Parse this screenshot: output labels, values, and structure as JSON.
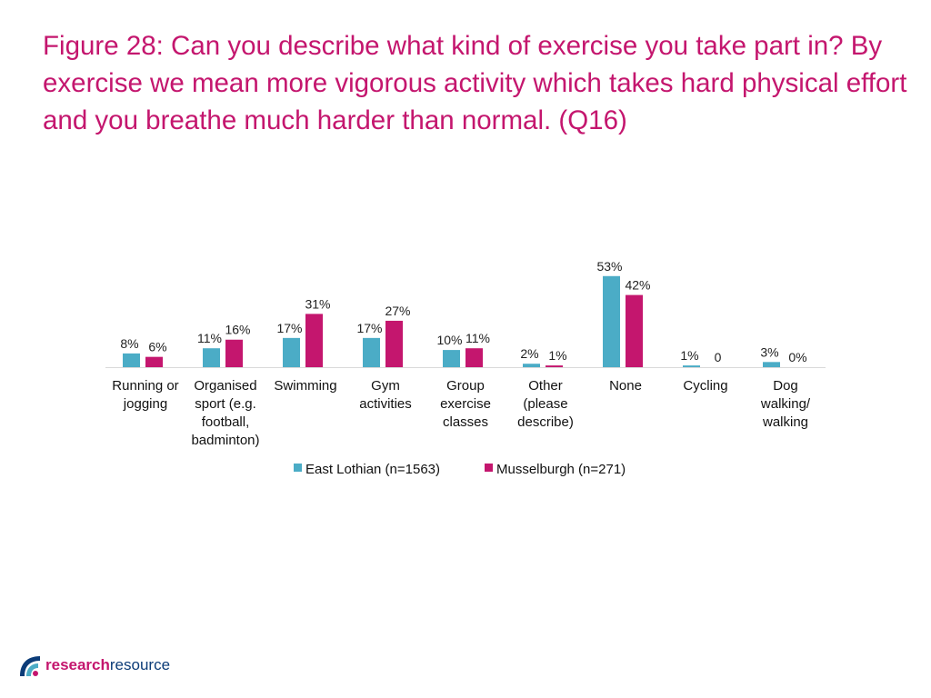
{
  "title": "Figure 28: Can you describe what kind of exercise you take part in? By exercise we mean more vigorous activity which takes hard physical effort and you breathe much harder than normal. (Q16)",
  "logo": {
    "part1": "research",
    "part2": "resource"
  },
  "colors": {
    "series1": "#4bacc6",
    "series2": "#c4166e",
    "title": "#c4166e"
  },
  "chart_data": {
    "type": "bar",
    "categories": [
      [
        "Running or",
        "jogging"
      ],
      [
        "Organised",
        "sport (e.g.",
        "football,",
        "badminton)"
      ],
      [
        "Swimming"
      ],
      [
        "Gym",
        "activities"
      ],
      [
        "Group",
        "exercise",
        "classes"
      ],
      [
        "Other",
        "(please",
        "describe)"
      ],
      [
        "None"
      ],
      [
        "Cycling"
      ],
      [
        "Dog",
        "walking/",
        "walking"
      ]
    ],
    "series": [
      {
        "name": "East Lothian (n=1563)",
        "values": [
          8,
          11,
          17,
          17,
          10,
          2,
          53,
          1,
          3
        ],
        "labels": [
          "8%",
          "11%",
          "17%",
          "17%",
          "10%",
          "2%",
          "53%",
          "1%",
          "3%"
        ]
      },
      {
        "name": "Musselburgh (n=271)",
        "values": [
          6,
          16,
          31,
          27,
          11,
          1,
          42,
          0,
          0
        ],
        "labels": [
          "6%",
          "16%",
          "31%",
          "27%",
          "11%",
          "1%",
          "42%",
          "0",
          "0%"
        ]
      }
    ],
    "ylim": [
      0,
      55
    ],
    "legend": "bottom"
  }
}
